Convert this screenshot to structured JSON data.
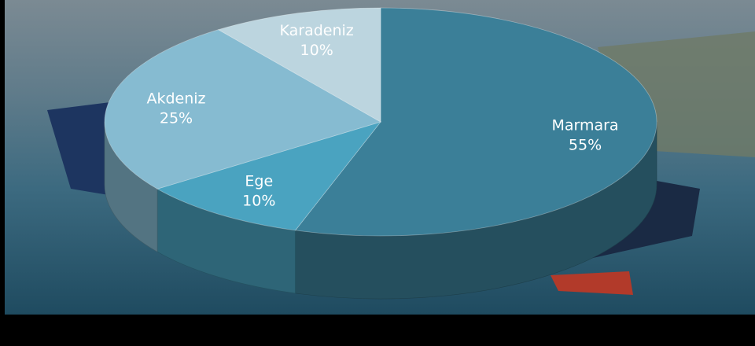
{
  "chart_data": {
    "type": "pie3d",
    "categories": [
      "Marmara",
      "Ege",
      "Akdeniz",
      "Karadeniz"
    ],
    "values": [
      55,
      10,
      25,
      10
    ],
    "value_labels": [
      "55%",
      "10%",
      "25%",
      "10%"
    ],
    "colors": [
      "#3b7f98",
      "#4aa3c0",
      "#86bbd1",
      "#bcd5df"
    ]
  }
}
